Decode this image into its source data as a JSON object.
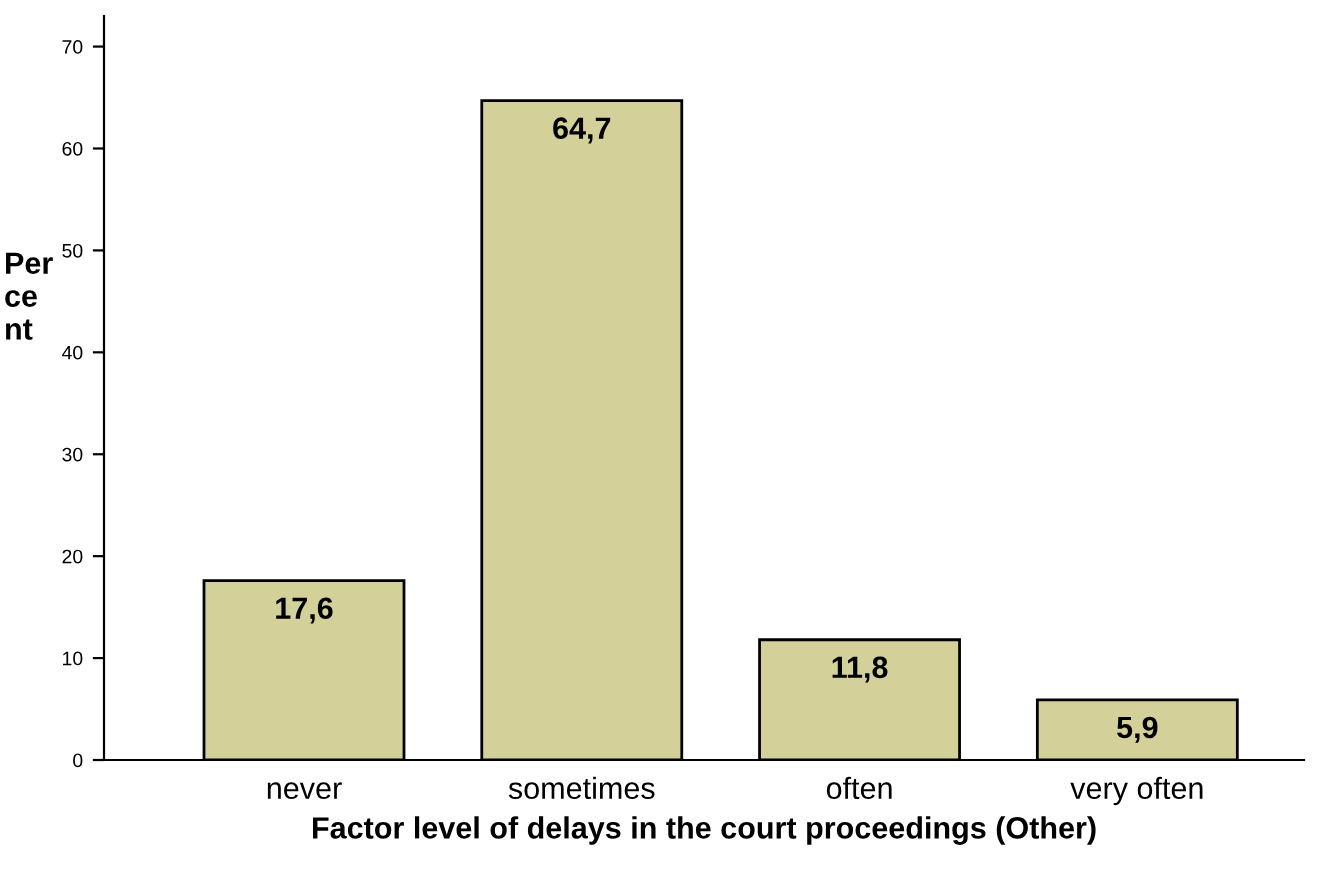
{
  "chart_data": {
    "type": "bar",
    "xlabel": "Factor level of delays in the court proceedings (Other)",
    "ylabel": "Per\nce\nnt",
    "categories": [
      "never",
      "sometimes",
      "often",
      "very often"
    ],
    "values": [
      17.6,
      64.7,
      11.8,
      5.9
    ],
    "value_labels": [
      "17,6",
      "64,7",
      "11,8",
      "5,9"
    ],
    "color": "#d4d09a",
    "ylim": [
      0,
      73
    ],
    "yticks": [
      0,
      10,
      20,
      30,
      40,
      50,
      60,
      70
    ],
    "grid": false
  }
}
